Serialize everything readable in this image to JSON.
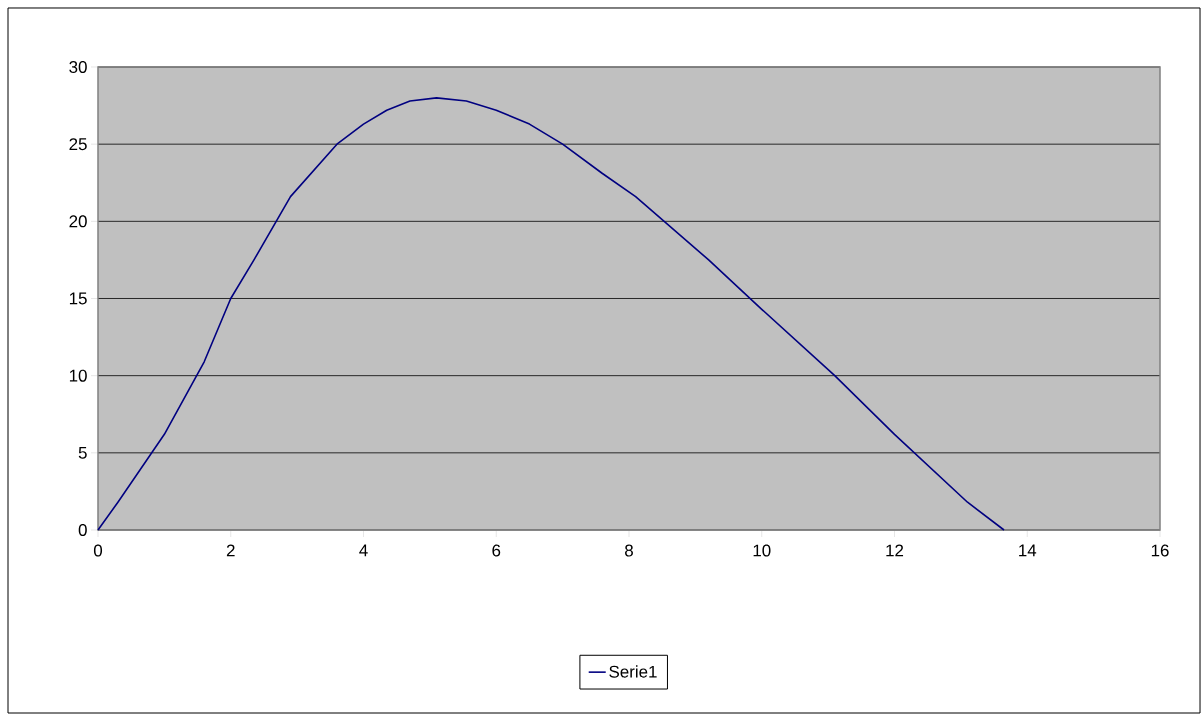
{
  "chart_data": {
    "type": "line",
    "x": [
      0,
      0.3,
      1.0,
      1.6,
      2.0,
      2.35,
      2.9,
      3.6,
      4.0,
      4.35,
      4.7,
      5.1,
      5.55,
      6.0,
      6.5,
      7.0,
      7.6,
      8.1,
      9.2,
      10.0,
      11.1,
      12.0,
      13.1,
      13.65
    ],
    "series": [
      {
        "name": "Serie1",
        "color": "#000080",
        "values": [
          0,
          1.8,
          6.2,
          10.9,
          15,
          17.5,
          21.6,
          25,
          26.3,
          27.2,
          27.8,
          28.0,
          27.8,
          27.2,
          26.3,
          25,
          23.1,
          21.6,
          17.5,
          14.3,
          10,
          6.2,
          1.8,
          0
        ]
      }
    ],
    "xlim": [
      0,
      16
    ],
    "xticks": [
      0,
      2,
      4,
      6,
      8,
      10,
      12,
      14,
      16
    ],
    "ylim": [
      0,
      30
    ],
    "yticks": [
      0,
      5,
      10,
      15,
      20,
      25,
      30
    ],
    "grid": "y",
    "legend": "bottom",
    "marker": "none",
    "line_style": "solid"
  }
}
